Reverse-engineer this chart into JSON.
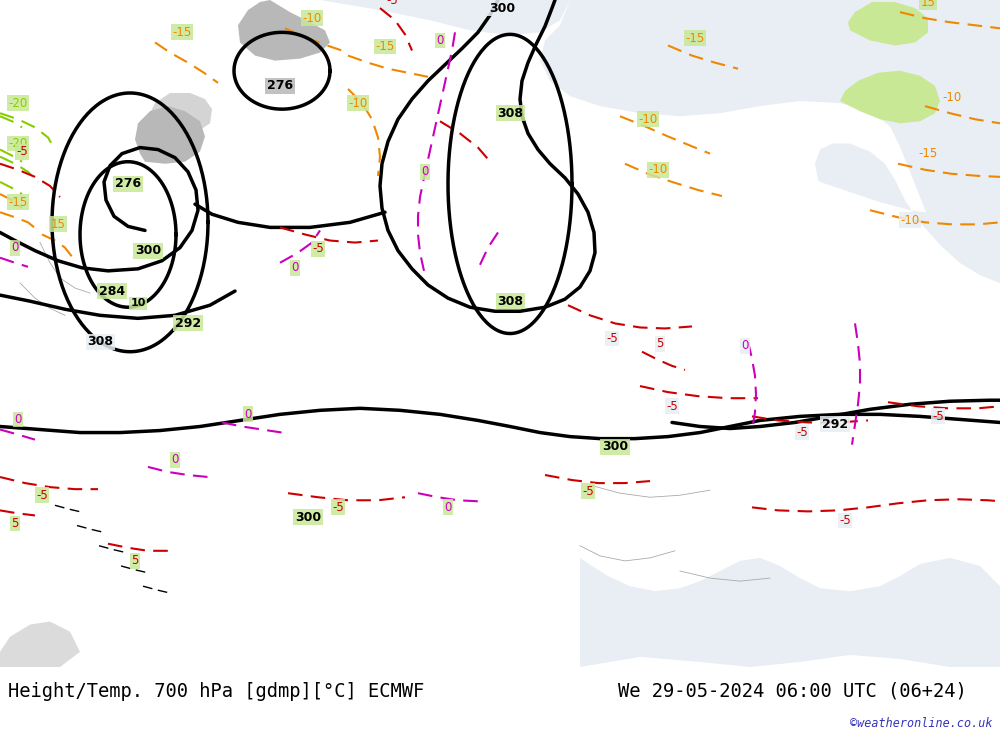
{
  "title_left": "Height/Temp. 700 hPa [gdmp][°C] ECMWF",
  "title_right": "We 29-05-2024 06:00 UTC (06+24)",
  "watermark": "©weatheronline.co.uk",
  "text_color": "#000000",
  "watermark_color": "#3333bb",
  "title_fontsize": 13.5,
  "watermark_fontsize": 8.5,
  "fig_width": 10.0,
  "fig_height": 7.33,
  "land_green": "#c8e896",
  "sea_gray": "#d0d0d0",
  "sea_light": "#e8eef4",
  "terrain_gray": "#b8b8b8",
  "title_bg": "#ffffff",
  "black": "#000000",
  "red": "#cc0000",
  "orange": "#ee8800",
  "magenta": "#cc00bb",
  "yellow_green": "#88cc00"
}
